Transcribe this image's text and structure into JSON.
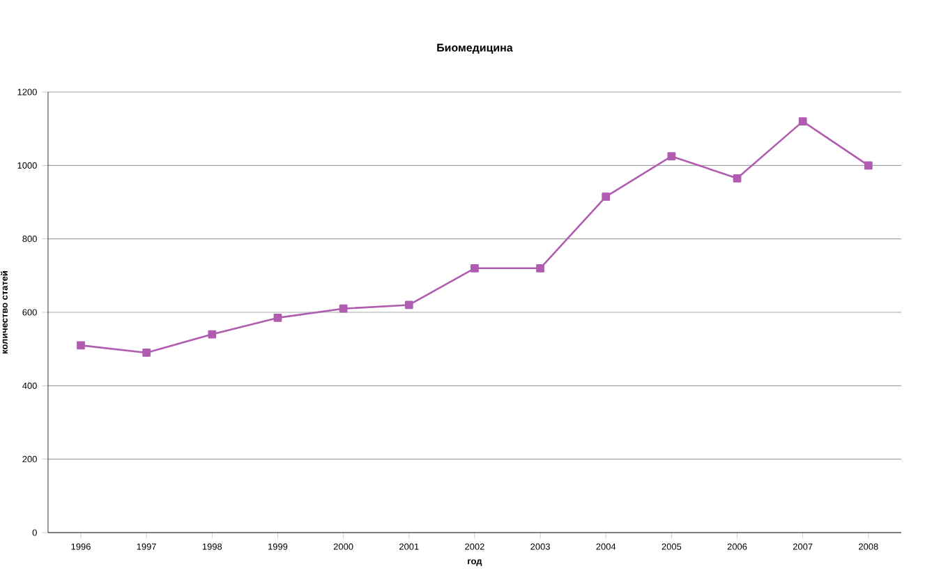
{
  "chart_data": {
    "type": "line",
    "title": "Биомедицина",
    "xlabel": "год",
    "ylabel": "количество статей",
    "categories": [
      "1996",
      "1997",
      "1998",
      "1999",
      "2000",
      "2001",
      "2002",
      "2003",
      "2004",
      "2005",
      "2006",
      "2007",
      "2008"
    ],
    "series": [
      {
        "color": "#b05cb0",
        "values": [
          510,
          490,
          540,
          585,
          610,
          620,
          720,
          720,
          915,
          1025,
          965,
          1120,
          1000
        ]
      }
    ],
    "ylim": [
      0,
      1200
    ],
    "yticks": [
      0,
      200,
      400,
      600,
      800,
      1000,
      1200
    ],
    "grid": "y",
    "marker": "square",
    "line_style": "solid"
  }
}
